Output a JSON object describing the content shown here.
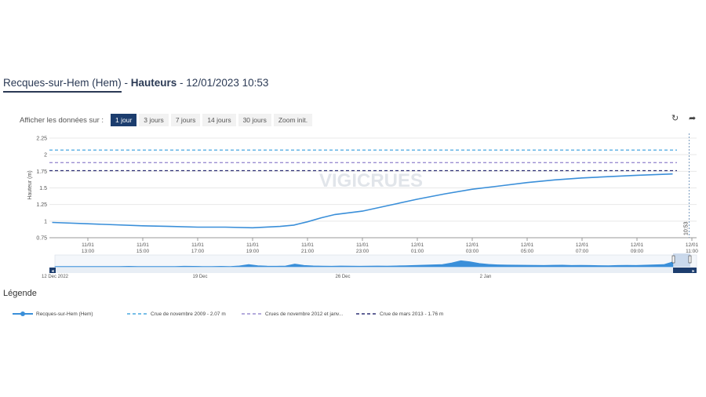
{
  "header": {
    "station": "Recques-sur-Hem (Hem)",
    "sep1": " - ",
    "parameter": "Hauteurs",
    "sep2": " - ",
    "datetime": "12/01/2023 10:53"
  },
  "controls": {
    "label": "Afficher les données sur :",
    "ranges": [
      "1 jour",
      "3 jours",
      "7 jours",
      "14 jours",
      "30 jours",
      "Zoom init."
    ],
    "active_index": 0
  },
  "icons": {
    "refresh": "refresh-icon",
    "share": "share-arrow-icon"
  },
  "colors": {
    "series": "#3a8fd9",
    "crue2009": "#4aa8e0",
    "crue2012": "#9b8fd1",
    "crue2013": "#2e3175",
    "active_button": "#1c3d6e",
    "navigator_fill": "#3a8fd9"
  },
  "watermark": "VIGICRUES",
  "now_marker": "10:53",
  "chart_data": {
    "type": "line",
    "ylabel": "Hauteur (m)",
    "ylim": [
      0.75,
      2.25
    ],
    "yticks": [
      "0.75",
      "1",
      "1.25",
      "1.5",
      "1.75",
      "2",
      "2.25"
    ],
    "xticks": [
      [
        "11/01",
        "13:00"
      ],
      [
        "11/01",
        "15:00"
      ],
      [
        "11/01",
        "17:00"
      ],
      [
        "11/01",
        "19:00"
      ],
      [
        "11/01",
        "21:00"
      ],
      [
        "11/01",
        "23:00"
      ],
      [
        "12/01",
        "01:00"
      ],
      [
        "12/01",
        "03:00"
      ],
      [
        "12/01",
        "05:00"
      ],
      [
        "12/01",
        "07:00"
      ],
      [
        "12/01",
        "09:00"
      ],
      [
        "12/01",
        "11:00"
      ]
    ],
    "x_hours_from_first_tick": [
      0,
      2,
      4,
      6,
      8,
      10,
      12,
      14,
      16,
      18,
      20,
      22
    ],
    "series": [
      {
        "name": "Recques-sur-Hem (Hem)",
        "x": [
          -1.3,
          0,
          2,
          3,
          4,
          5,
          6,
          7,
          7.5,
          8,
          8.5,
          9,
          10,
          11,
          12,
          13,
          14,
          15,
          16,
          17,
          18,
          19,
          20,
          21.3
        ],
        "y": [
          0.98,
          0.96,
          0.93,
          0.92,
          0.91,
          0.91,
          0.9,
          0.92,
          0.94,
          0.99,
          1.05,
          1.1,
          1.15,
          1.24,
          1.33,
          1.41,
          1.48,
          1.53,
          1.58,
          1.62,
          1.65,
          1.67,
          1.69,
          1.71
        ]
      }
    ],
    "thresholds": [
      {
        "name": "Crue de novembre 2009 - 2.07 m",
        "value": 2.07
      },
      {
        "name": "Crues de novembre 2012 et janv...",
        "value": 1.88
      },
      {
        "name": "Crue de mars 2013 - 1.76 m",
        "value": 1.76
      }
    ],
    "navigator": {
      "labels": [
        "12 Dec 2022",
        "19 Dec",
        "26 Dec",
        "2 Jan"
      ],
      "values": [
        0.02,
        0.03,
        0.02,
        0.03,
        0.02,
        0.02,
        0.03,
        0.02,
        0.04,
        0.03,
        0.02,
        0.03,
        0.02,
        0.03,
        0.05,
        0.04,
        0.03,
        0.03,
        0.04,
        0.03,
        0.08,
        0.2,
        0.1,
        0.06,
        0.05,
        0.07,
        0.25,
        0.12,
        0.08,
        0.06,
        0.05,
        0.07,
        0.06,
        0.05,
        0.06,
        0.07,
        0.06,
        0.08,
        0.1,
        0.12,
        0.15,
        0.18,
        0.2,
        0.35,
        0.55,
        0.45,
        0.3,
        0.22,
        0.18,
        0.16,
        0.15,
        0.14,
        0.13,
        0.12,
        0.14,
        0.15,
        0.12,
        0.13,
        0.12,
        0.11,
        0.1,
        0.12,
        0.13,
        0.12,
        0.15,
        0.18,
        0.2,
        0.45
      ]
    }
  }
}
